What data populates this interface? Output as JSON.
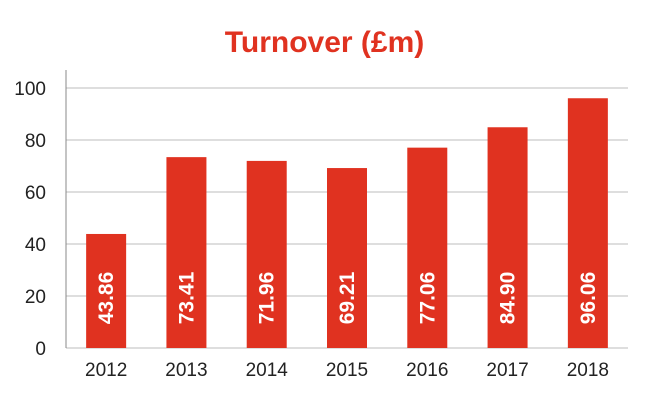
{
  "colors": {
    "bar": "#e03220",
    "title": "#e03220",
    "grid": "#bdbdbd",
    "axis": "#888888",
    "bar_label": "#ffffff"
  },
  "chart_data": {
    "type": "bar",
    "title": "Turnover (£m)",
    "xlabel": "",
    "ylabel": "",
    "categories": [
      "2012",
      "2013",
      "2014",
      "2015",
      "2016",
      "2017",
      "2018"
    ],
    "values": [
      43.86,
      73.41,
      71.96,
      69.21,
      77.06,
      84.9,
      96.06
    ],
    "value_labels": [
      "43.86",
      "73.41",
      "71.96",
      "69.21",
      "77.06",
      "84.90",
      "96.06"
    ],
    "ylim": [
      0,
      100
    ],
    "yticks": [
      "0",
      "20",
      "40",
      "60",
      "80",
      "100"
    ],
    "grid": true,
    "legend": "none",
    "data_labels": "inside-vertical"
  }
}
